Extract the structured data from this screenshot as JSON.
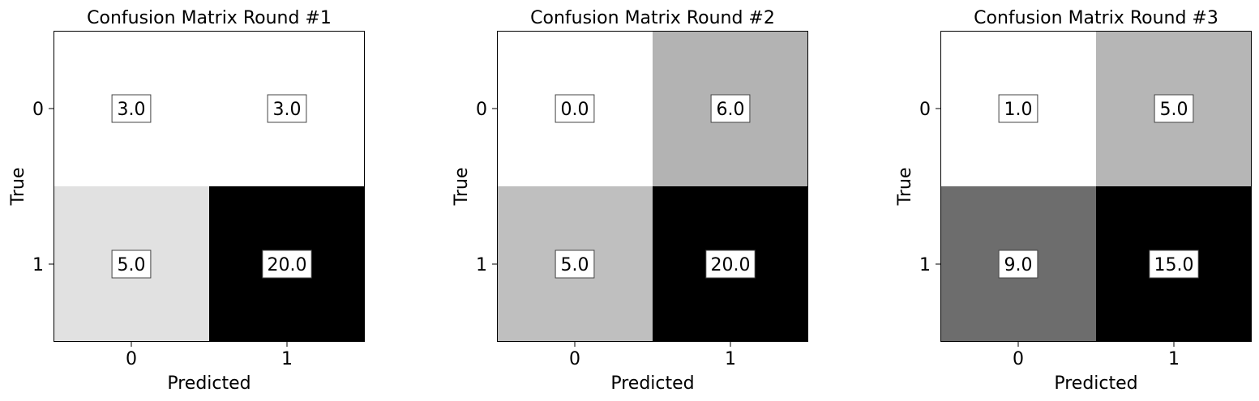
{
  "chart_data": [
    {
      "type": "heatmap",
      "title": "Confusion Matrix Round #1",
      "xlabel": "Predicted",
      "ylabel": "True",
      "x_ticks": [
        "0",
        "1"
      ],
      "y_ticks": [
        "0",
        "1"
      ],
      "values": [
        [
          3.0,
          3.0
        ],
        [
          5.0,
          20.0
        ]
      ],
      "labels": [
        [
          "3.0",
          "3.0"
        ],
        [
          "5.0",
          "20.0"
        ]
      ],
      "colormap": "grayscale-reversed"
    },
    {
      "type": "heatmap",
      "title": "Confusion Matrix Round #2",
      "xlabel": "Predicted",
      "ylabel": "True",
      "x_ticks": [
        "0",
        "1"
      ],
      "y_ticks": [
        "0",
        "1"
      ],
      "values": [
        [
          0.0,
          6.0
        ],
        [
          5.0,
          20.0
        ]
      ],
      "labels": [
        [
          "0.0",
          "6.0"
        ],
        [
          "5.0",
          "20.0"
        ]
      ],
      "colormap": "grayscale-reversed"
    },
    {
      "type": "heatmap",
      "title": "Confusion Matrix Round #3",
      "xlabel": "Predicted",
      "ylabel": "True",
      "x_ticks": [
        "0",
        "1"
      ],
      "y_ticks": [
        "0",
        "1"
      ],
      "values": [
        [
          1.0,
          5.0
        ],
        [
          9.0,
          15.0
        ]
      ],
      "labels": [
        [
          "1.0",
          "5.0"
        ],
        [
          "9.0",
          "15.0"
        ]
      ],
      "colormap": "grayscale-reversed"
    }
  ]
}
